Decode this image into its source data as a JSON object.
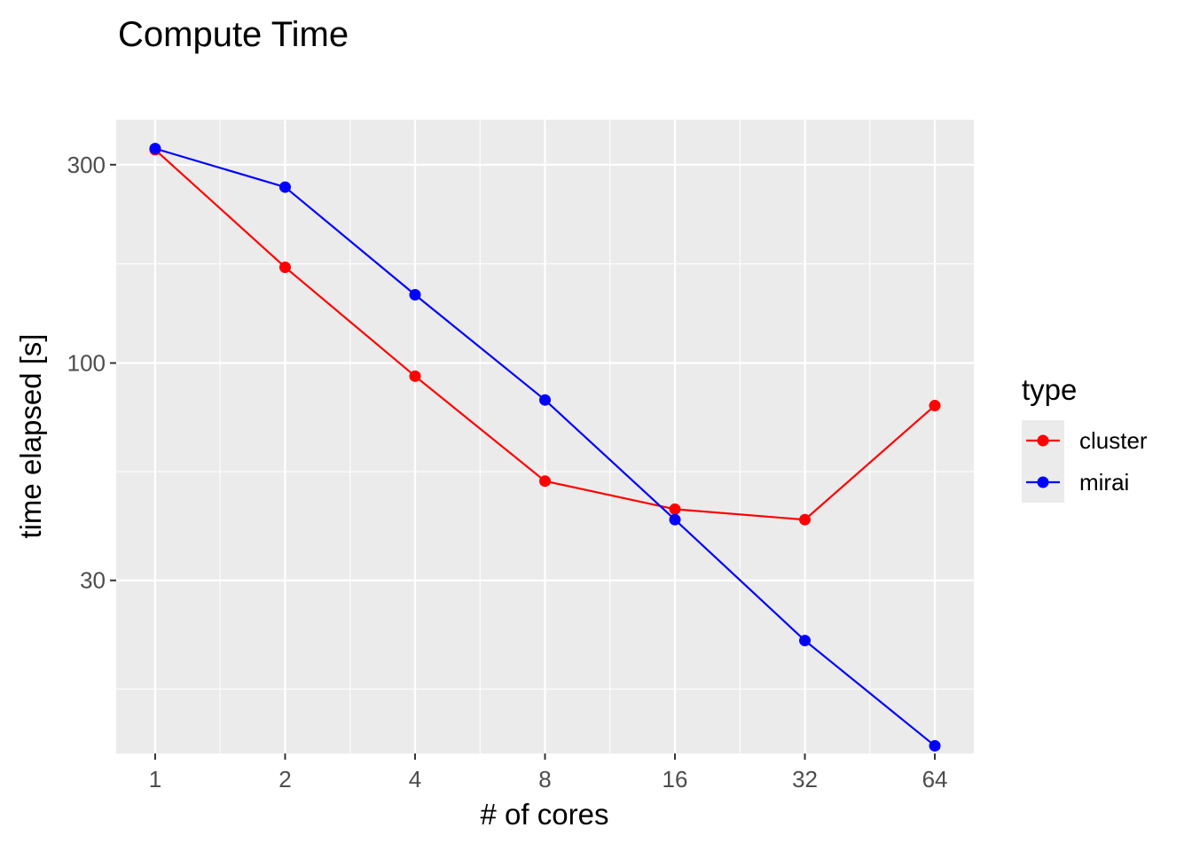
{
  "chart_data": {
    "type": "line",
    "title": "Compute Time",
    "xlabel": "# of cores",
    "ylabel": "time elapsed [s]",
    "x_scale": "log2",
    "y_scale": "log10",
    "x": [
      1,
      2,
      4,
      8,
      16,
      32,
      64
    ],
    "x_tick_labels": [
      "1",
      "2",
      "4",
      "8",
      "16",
      "32",
      "64"
    ],
    "y_ticks": [
      30,
      100,
      300
    ],
    "y_tick_labels": [
      "30",
      "100",
      "300"
    ],
    "ylim": [
      11.5,
      385
    ],
    "grid": true,
    "legend": {
      "title": "type",
      "position": "right"
    },
    "series": [
      {
        "name": "cluster",
        "color": "#ff0000",
        "values": [
          326,
          170,
          93,
          52,
          44.5,
          42,
          79
        ]
      },
      {
        "name": "mirai",
        "color": "#0000ff",
        "values": [
          328,
          265,
          146,
          81.5,
          42,
          21.5,
          12
        ]
      }
    ],
    "colors": {
      "panel_background": "#ebebeb",
      "grid": "#ffffff",
      "tick_text": "#4d4d4d"
    }
  }
}
